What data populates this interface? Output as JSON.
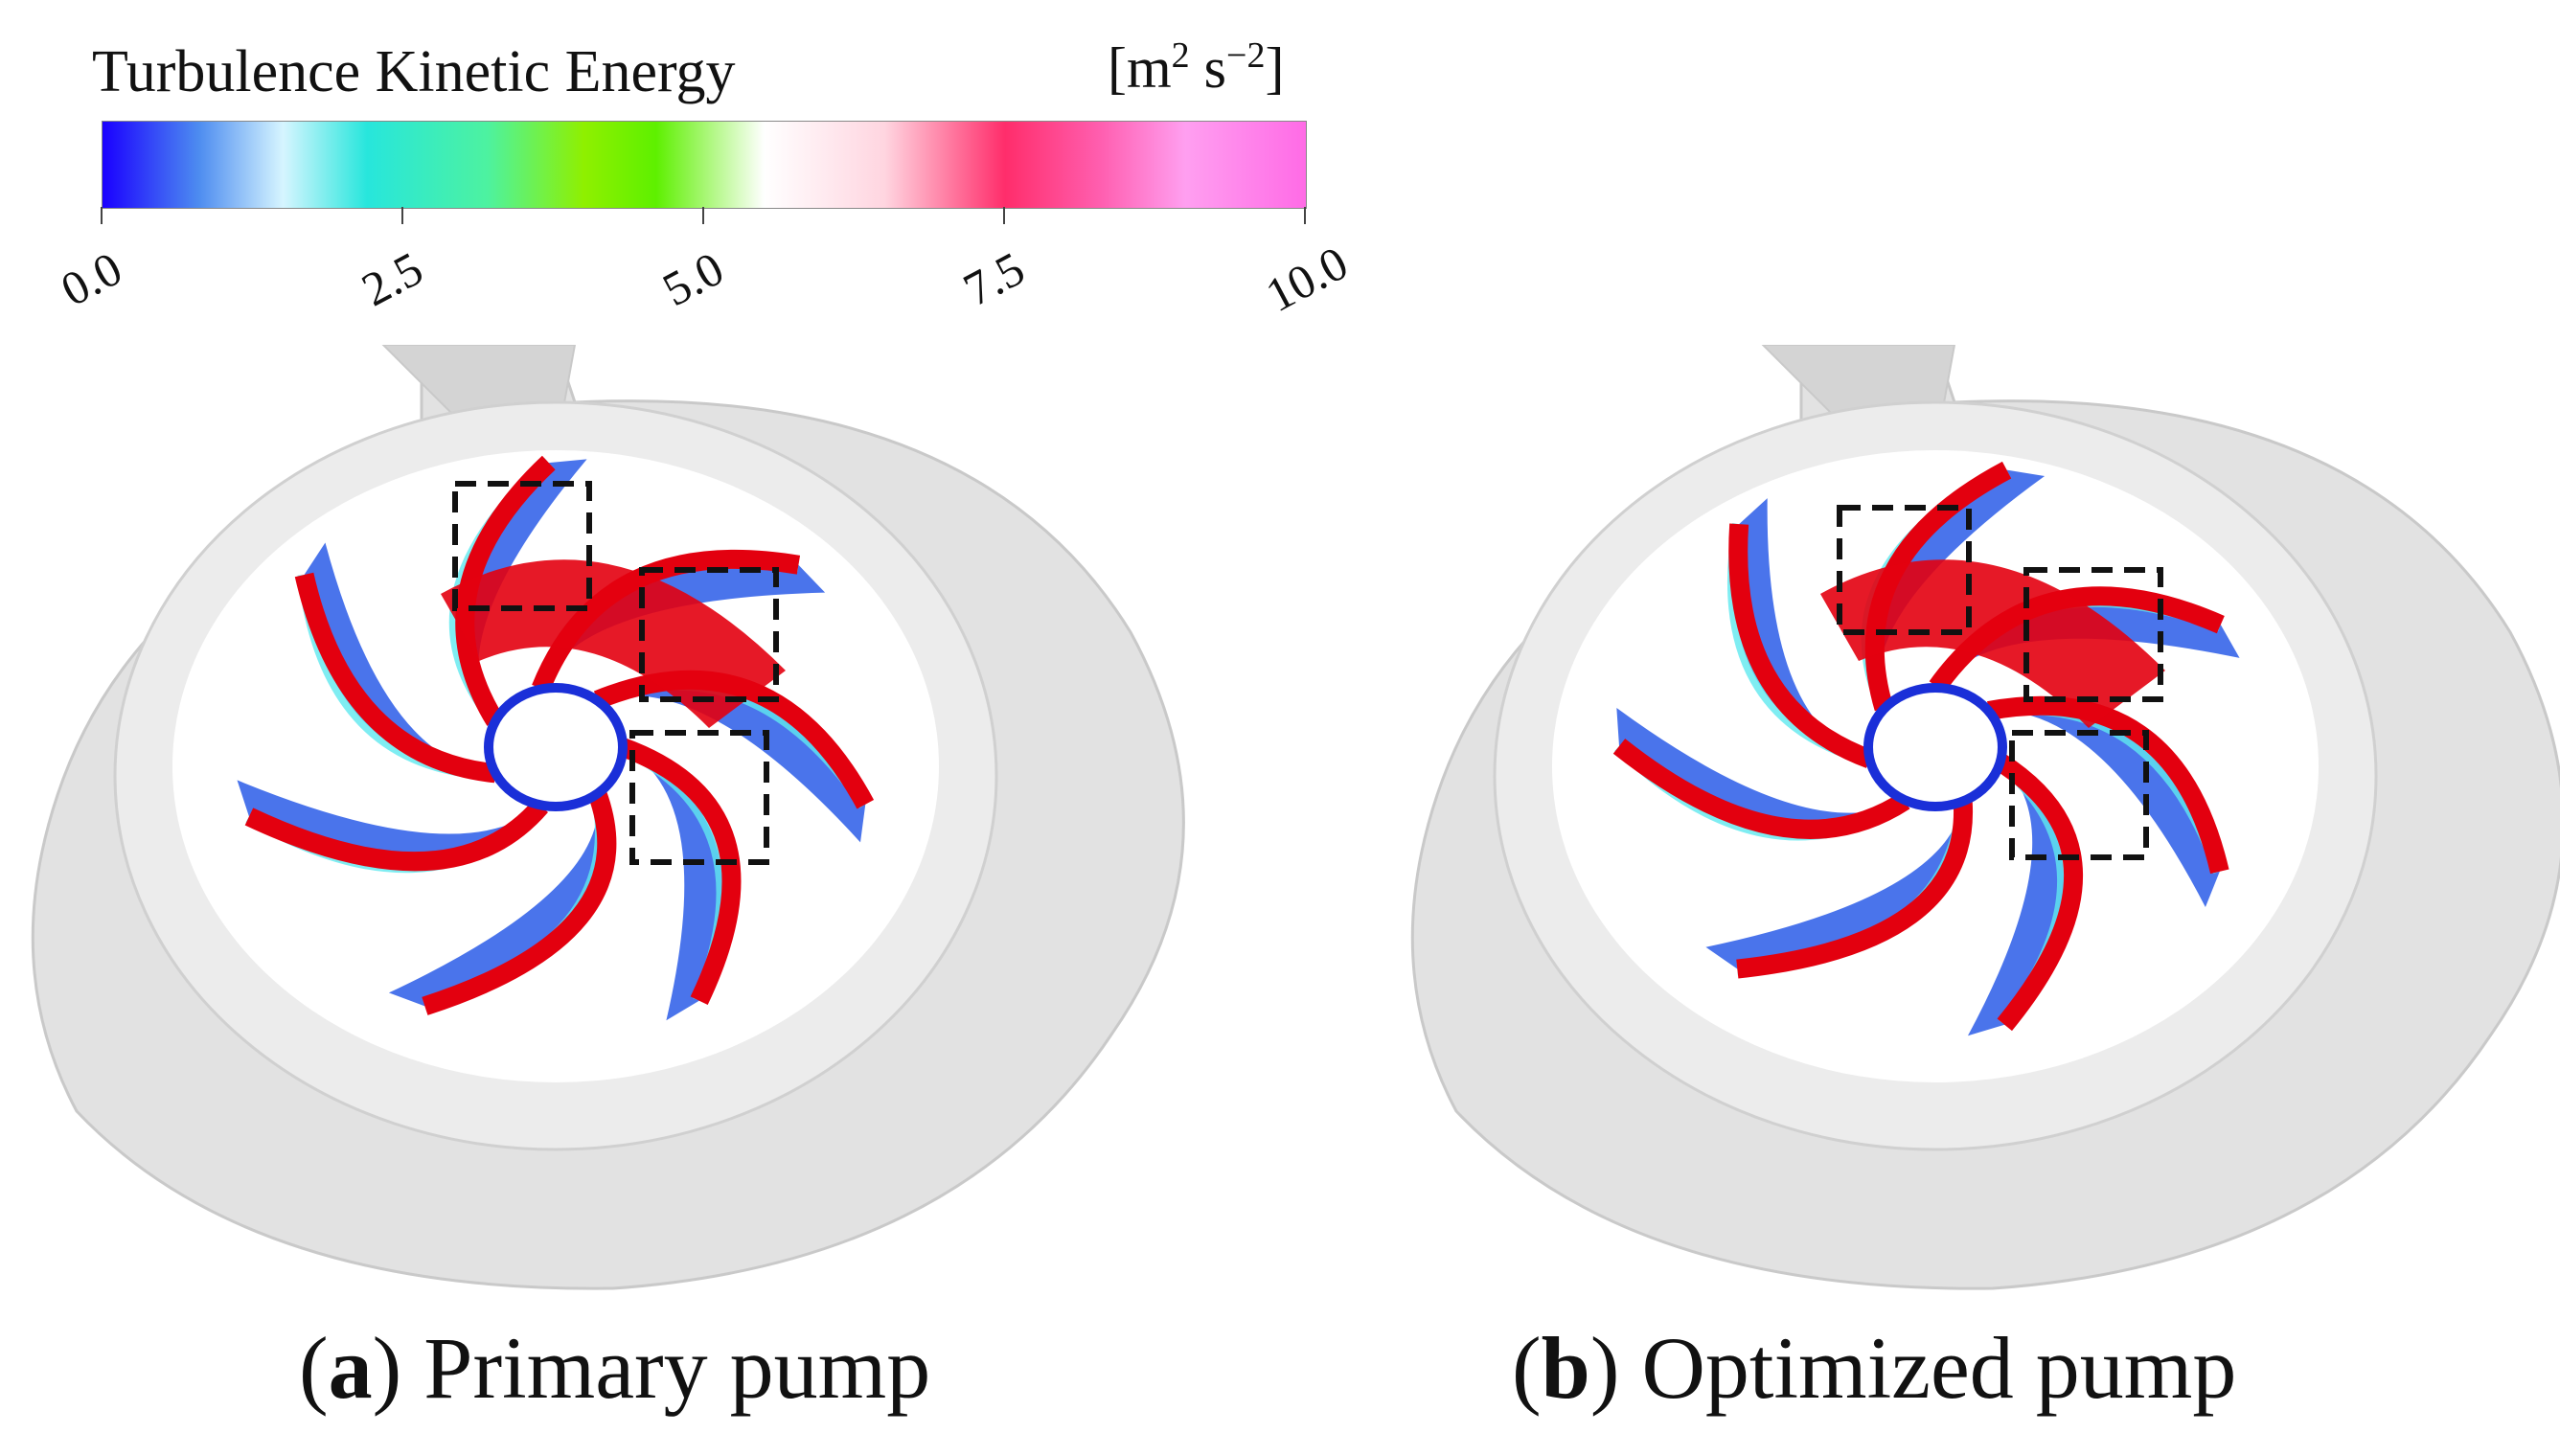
{
  "colorbar": {
    "title": "Turbulence Kinetic Energy",
    "units_base": "[m",
    "units_exp1": "2",
    "units_mid": " s",
    "units_exp2": "−2",
    "units_end": "]",
    "ticks": [
      "0.0",
      "2.5",
      "5.0",
      "7.5",
      "10.0"
    ],
    "range": [
      0.0,
      10.0
    ],
    "gradient_stops": [
      {
        "value": 0.0,
        "color": "#1a00ff"
      },
      {
        "value": 0.8,
        "color": "#4d8cf0"
      },
      {
        "value": 1.5,
        "color": "#d6f5ff"
      },
      {
        "value": 2.2,
        "color": "#27e6dc"
      },
      {
        "value": 3.2,
        "color": "#4df2a0"
      },
      {
        "value": 4.0,
        "color": "#8ff000"
      },
      {
        "value": 4.6,
        "color": "#5ef000"
      },
      {
        "value": 5.5,
        "color": "#ffffff"
      },
      {
        "value": 6.5,
        "color": "#ffd5e0"
      },
      {
        "value": 7.5,
        "color": "#ff2d6b"
      },
      {
        "value": 8.3,
        "color": "#ff5fb0"
      },
      {
        "value": 9.0,
        "color": "#ff9ff0"
      },
      {
        "value": 10.0,
        "color": "#ff6be6"
      }
    ]
  },
  "panels": [
    {
      "id": "a",
      "caption_letter": "a",
      "caption_text": " Primary pump"
    },
    {
      "id": "b",
      "caption_letter": "b",
      "caption_text": " Optimized pump"
    }
  ],
  "colors": {
    "casing": "#e2e2e2",
    "casing_edge": "#c9c9c9",
    "blade_high": "#e3000f",
    "blade_low": "#2a5ce8",
    "blade_mid": "#5fe8ef",
    "highlight_box": "#111111"
  }
}
